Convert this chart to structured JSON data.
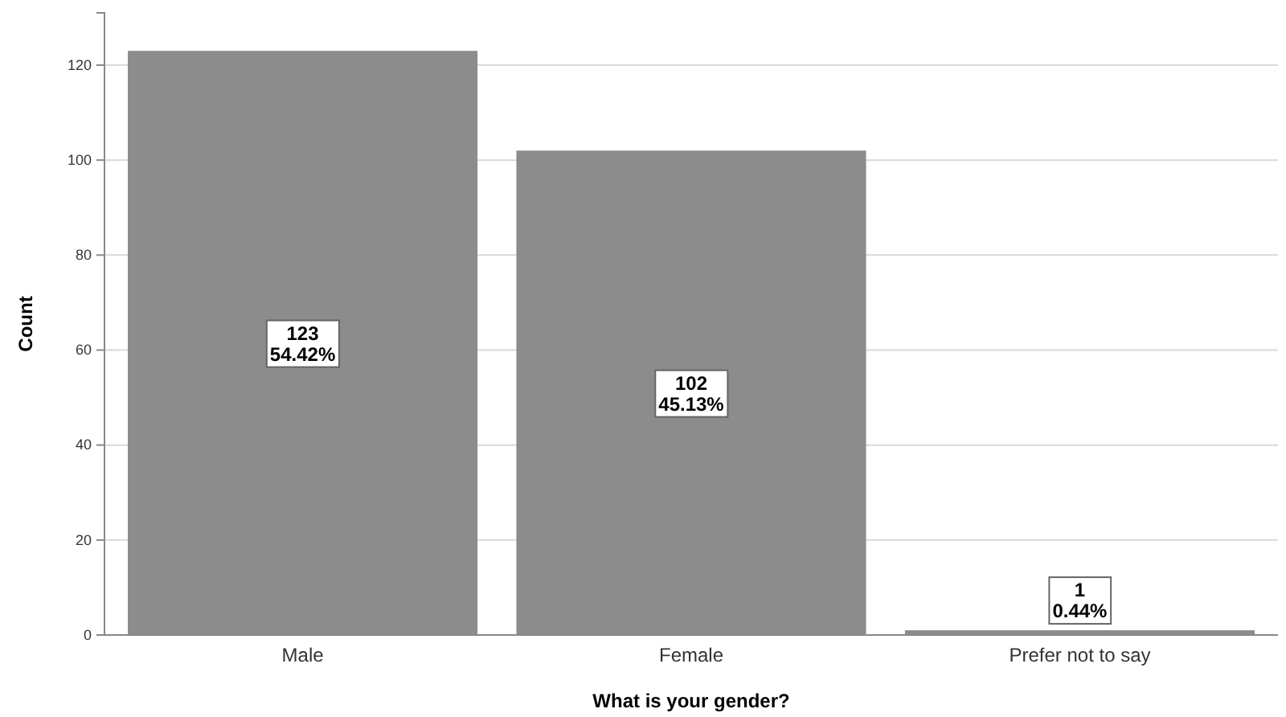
{
  "chart_data": {
    "type": "bar",
    "xlabel": "What is your gender?",
    "ylabel": "Count",
    "categories": [
      "Male",
      "Female",
      "Prefer not to say"
    ],
    "values": [
      123,
      102,
      1
    ],
    "color": "#8c8c8c",
    "value_labels": [
      "123\n54.42%",
      "102\n45.13%",
      "1\n0.44%"
    ],
    "ylim": [
      0,
      131
    ],
    "yticks": [
      0,
      20,
      40,
      60,
      80,
      100,
      120
    ],
    "grid": "y"
  }
}
